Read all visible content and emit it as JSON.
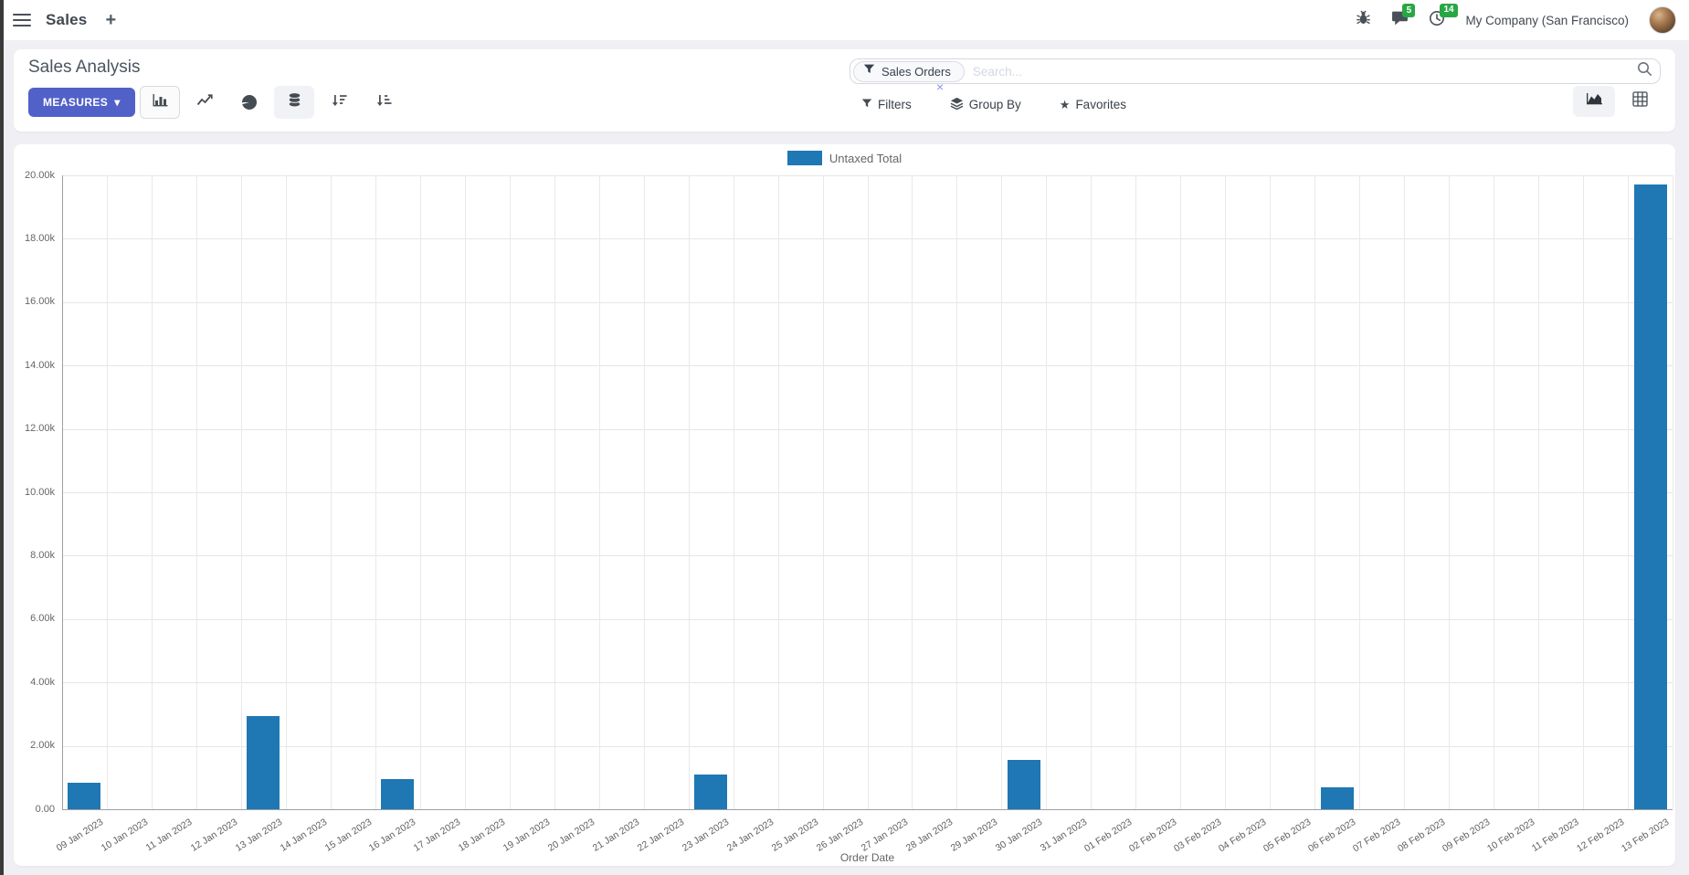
{
  "icons": {
    "plus": "+",
    "caret_down": "▾",
    "star": "★",
    "close": "×"
  },
  "navbar": {
    "app_name": "Sales",
    "messages_count": "5",
    "activities_count": "14",
    "company": "My Company (San Francisco)"
  },
  "control_panel": {
    "title": "Sales Analysis",
    "measures_label": "MEASURES",
    "search": {
      "facet": "Sales Orders",
      "placeholder": "Search..."
    },
    "filters_label": "Filters",
    "group_by_label": "Group By",
    "favorites_label": "Favorites"
  },
  "chart_data": {
    "type": "bar",
    "legend": "Untaxed Total",
    "series_color": "#1f77b4",
    "xlabel": "Order Date",
    "ylim": [
      0,
      20000
    ],
    "y_ticks": [
      "0.00",
      "2.00k",
      "4.00k",
      "6.00k",
      "8.00k",
      "10.00k",
      "12.00k",
      "14.00k",
      "16.00k",
      "18.00k",
      "20.00k"
    ],
    "grid": true,
    "legend_position": "top",
    "categories": [
      "09 Jan 2023",
      "10 Jan 2023",
      "11 Jan 2023",
      "12 Jan 2023",
      "13 Jan 2023",
      "14 Jan 2023",
      "15 Jan 2023",
      "16 Jan 2023",
      "17 Jan 2023",
      "18 Jan 2023",
      "19 Jan 2023",
      "20 Jan 2023",
      "21 Jan 2023",
      "22 Jan 2023",
      "23 Jan 2023",
      "24 Jan 2023",
      "25 Jan 2023",
      "26 Jan 2023",
      "27 Jan 2023",
      "28 Jan 2023",
      "29 Jan 2023",
      "30 Jan 2023",
      "31 Jan 2023",
      "01 Feb 2023",
      "02 Feb 2023",
      "03 Feb 2023",
      "04 Feb 2023",
      "05 Feb 2023",
      "06 Feb 2023",
      "07 Feb 2023",
      "08 Feb 2023",
      "09 Feb 2023",
      "10 Feb 2023",
      "11 Feb 2023",
      "12 Feb 2023",
      "13 Feb 2023"
    ],
    "values": [
      850,
      0,
      0,
      0,
      2950,
      0,
      0,
      950,
      0,
      0,
      0,
      0,
      0,
      0,
      1100,
      0,
      0,
      0,
      0,
      0,
      0,
      1550,
      0,
      0,
      0,
      0,
      0,
      0,
      680,
      0,
      0,
      0,
      0,
      0,
      0,
      19700
    ]
  }
}
